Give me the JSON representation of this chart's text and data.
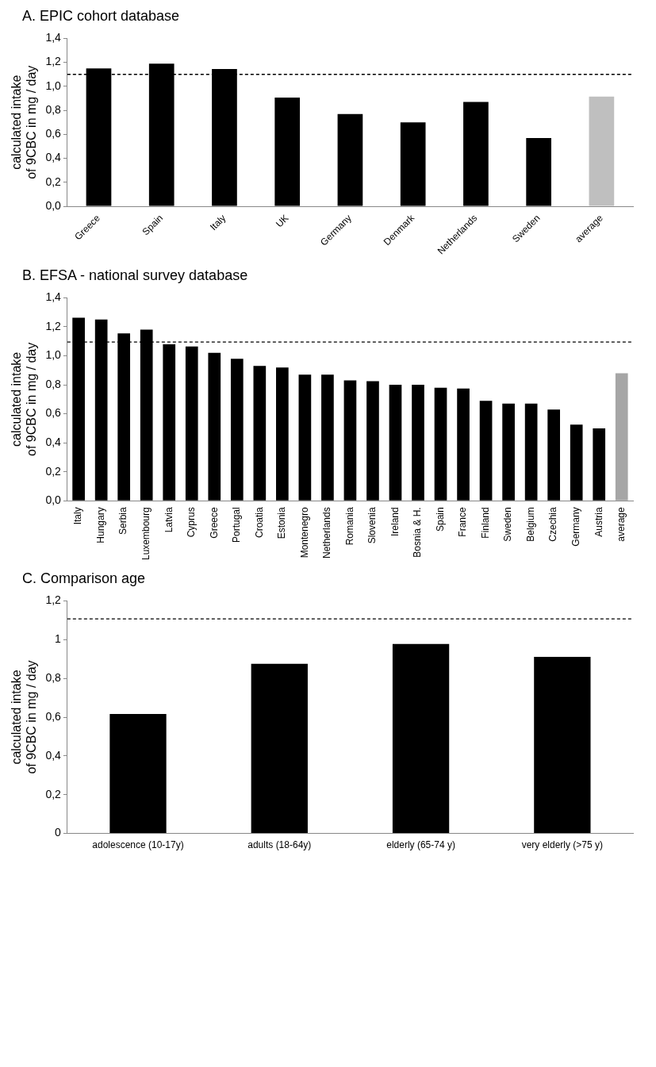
{
  "chart_data": [
    {
      "type": "bar",
      "title": "A. EPIC cohort database",
      "ylabel": "calculated intake of 9CBC in mg / day",
      "categories": [
        "Greece",
        "Spain",
        "Italy",
        "UK",
        "Germany",
        "Denmark",
        "Netherlands",
        "Sweden",
        "average"
      ],
      "values": [
        1.15,
        1.19,
        1.145,
        0.907,
        0.77,
        0.7,
        0.87,
        0.57,
        0.915
      ],
      "colors": [
        "#000000",
        "#000000",
        "#000000",
        "#000000",
        "#000000",
        "#000000",
        "#000000",
        "#000000",
        "#bfbfbf"
      ],
      "ylim": [
        0,
        1.4
      ],
      "yticks": [
        {
          "value": 0,
          "label": "0,0"
        },
        {
          "value": 0.2,
          "label": "0,2"
        },
        {
          "value": 0.4,
          "label": "0,4"
        },
        {
          "value": 0.6,
          "label": "0,6"
        },
        {
          "value": 0.8,
          "label": "0,8"
        },
        {
          "value": 1,
          "label": "1,0"
        },
        {
          "value": 1.2,
          "label": "1,2"
        },
        {
          "value": 1.4,
          "label": "1,4"
        }
      ],
      "ref_lines": [
        {
          "axis": "y",
          "value": 1.1,
          "color": "#000000",
          "line_style": "dashed"
        }
      ],
      "grid": false,
      "legend": false
    },
    {
      "type": "bar",
      "title": "B. EFSA - national survey database",
      "ylabel": "calculated intake of 9CBC in mg / day",
      "categories": [
        "Italy",
        "Hungary",
        "Serbia",
        "Luxembourg",
        "Latvia",
        "Cyprus",
        "Greece",
        "Portugal",
        "Croatia",
        "Estonia",
        "Montenegro",
        "Netherlands",
        "Romania",
        "Slovenia",
        "Ireland",
        "Bosnia & H.",
        "Spain",
        "France",
        "Finland",
        "Sweden",
        "Belgium",
        "Czechia",
        "Germany",
        "Austria",
        "average"
      ],
      "values": [
        1.263,
        1.25,
        1.155,
        1.18,
        1.08,
        1.065,
        1.02,
        0.98,
        0.93,
        0.92,
        0.87,
        0.87,
        0.83,
        0.825,
        0.8,
        0.8,
        0.78,
        0.775,
        0.69,
        0.67,
        0.67,
        0.63,
        0.525,
        0.5,
        0.88
      ],
      "colors": [
        "#000000",
        "#000000",
        "#000000",
        "#000000",
        "#000000",
        "#000000",
        "#000000",
        "#000000",
        "#000000",
        "#000000",
        "#000000",
        "#000000",
        "#000000",
        "#000000",
        "#000000",
        "#000000",
        "#000000",
        "#000000",
        "#000000",
        "#000000",
        "#000000",
        "#000000",
        "#000000",
        "#000000",
        "#a6a6a6"
      ],
      "ylim": [
        0,
        1.4
      ],
      "yticks": [
        {
          "value": 0,
          "label": "0,0"
        },
        {
          "value": 0.2,
          "label": "0,2"
        },
        {
          "value": 0.4,
          "label": "0,4"
        },
        {
          "value": 0.6,
          "label": "0,6"
        },
        {
          "value": 0.8,
          "label": "0,8"
        },
        {
          "value": 1,
          "label": "1,0"
        },
        {
          "value": 1.2,
          "label": "1,2"
        },
        {
          "value": 1.4,
          "label": "1,4"
        }
      ],
      "ref_lines": [
        {
          "axis": "y",
          "value": 1.095,
          "color": "#000000",
          "line_style": "dashed"
        }
      ],
      "grid": false,
      "legend": false
    },
    {
      "type": "bar",
      "title": "C. Comparison age",
      "ylabel": "calculated intake of 9CBC in mg / day",
      "categories": [
        "adolescence (10-17y)",
        "adults (18-64y)",
        "elderly (65-74 y)",
        "very elderly (>75 y)"
      ],
      "values": [
        0.616,
        0.875,
        0.978,
        0.911
      ],
      "colors": [
        "#000000",
        "#000000",
        "#000000",
        "#000000"
      ],
      "ylim": [
        0,
        1.2
      ],
      "yticks": [
        0,
        {
          "value": 0.2,
          "label": "0,2"
        },
        {
          "value": 0.4,
          "label": "0,4"
        },
        {
          "value": 0.6,
          "label": "0,6"
        },
        {
          "value": 0.8,
          "label": "0,8"
        },
        1,
        {
          "value": 1.2,
          "label": "1,2"
        }
      ],
      "ref_lines": [
        {
          "axis": "y",
          "value": 1.107,
          "color": "#000000",
          "line_style": "dashed"
        }
      ],
      "grid": false,
      "legend": false
    }
  ]
}
